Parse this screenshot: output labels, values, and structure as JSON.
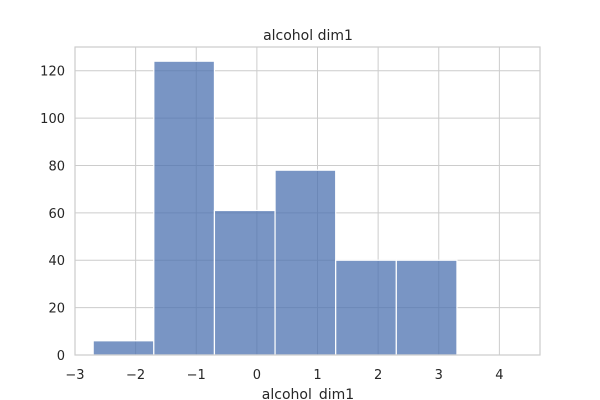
{
  "chart_data": {
    "type": "bar",
    "title": "alcohol dim1",
    "xlabel": "alcohol_dim1",
    "ylabel": "",
    "xlim": [
      -3,
      4.67
    ],
    "ylim": [
      0,
      130
    ],
    "xticks": [
      -3,
      -2,
      -1,
      0,
      1,
      2,
      3,
      4
    ],
    "yticks": [
      0,
      20,
      40,
      60,
      80,
      100,
      120
    ],
    "grid": true,
    "bar_color": "#4c72b0",
    "bins": [
      {
        "x0": -2.7,
        "x1": -1.7,
        "value": 6
      },
      {
        "x0": -1.7,
        "x1": -0.7,
        "value": 124
      },
      {
        "x0": -0.7,
        "x1": 0.3,
        "value": 61
      },
      {
        "x0": 0.3,
        "x1": 1.3,
        "value": 78
      },
      {
        "x0": 1.3,
        "x1": 2.3,
        "value": 40
      },
      {
        "x0": 2.3,
        "x1": 3.3,
        "value": 40
      }
    ]
  }
}
